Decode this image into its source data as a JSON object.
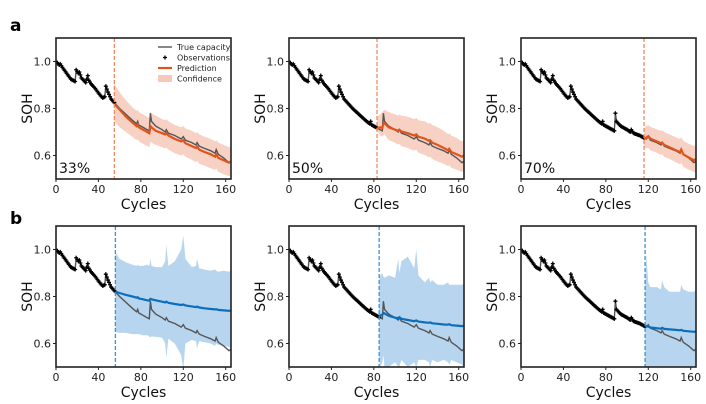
{
  "figure": {
    "row_labels": [
      "a",
      "b"
    ]
  },
  "legend": {
    "entries": [
      "True capacity",
      "Observations",
      "Prediction",
      "Confidence"
    ]
  },
  "colors": {
    "true_capacity": "#555555",
    "observations": "#000000",
    "row_a_prediction": "#e0541c",
    "row_a_confidence": "#f6c9b8",
    "row_a_split": "#f08a64",
    "row_b_prediction": "#0a6ebd",
    "row_b_confidence": "#b3d3ee",
    "row_b_split": "#3a93d6"
  },
  "chart_data": {
    "type": "line",
    "xlabel": "Cycles",
    "ylabel": "SOH",
    "xlim": [
      0,
      165
    ],
    "ylim": [
      0.5,
      1.1
    ],
    "xticks": [
      0,
      40,
      80,
      120,
      160
    ],
    "yticks": [
      0.6,
      0.8,
      1.0
    ],
    "ytick_labels": [
      "0.6",
      "0.8",
      "1.0"
    ],
    "true_capacity": {
      "cycles": [
        0,
        3,
        4,
        6,
        10,
        14,
        18,
        19,
        21,
        22,
        24,
        28,
        30,
        31,
        33,
        37,
        41,
        44,
        46,
        47,
        49,
        52,
        56,
        60,
        66,
        72,
        76,
        77,
        78,
        82,
        86,
        88,
        89,
        90,
        94,
        100,
        103,
        104,
        106,
        112,
        118,
        120,
        122,
        128,
        132,
        133,
        135,
        140,
        146,
        150,
        151,
        153,
        158,
        163,
        165
      ],
      "soh": [
        1.0,
        0.985,
        0.99,
        0.975,
        0.95,
        0.925,
        0.915,
        0.965,
        0.95,
        0.955,
        0.93,
        0.91,
        0.94,
        0.92,
        0.905,
        0.885,
        0.86,
        0.845,
        0.85,
        0.895,
        0.87,
        0.84,
        0.82,
        0.8,
        0.775,
        0.75,
        0.735,
        0.745,
        0.73,
        0.72,
        0.71,
        0.705,
        0.78,
        0.745,
        0.725,
        0.71,
        0.7,
        0.71,
        0.695,
        0.685,
        0.67,
        0.68,
        0.665,
        0.655,
        0.645,
        0.655,
        0.64,
        0.63,
        0.62,
        0.61,
        0.625,
        0.605,
        0.59,
        0.57,
        0.575
      ]
    },
    "panels": [
      {
        "row": "a",
        "label": "33%",
        "split_cycle": 55,
        "prediction": {
          "cycles": [
            55,
            60,
            66,
            72,
            76,
            77,
            78,
            82,
            86,
            88,
            89,
            90,
            94,
            100,
            103,
            104,
            106,
            112,
            118,
            120,
            122,
            128,
            132,
            133,
            135,
            140,
            146,
            150,
            151,
            153,
            158,
            163,
            165
          ],
          "soh": [
            0.82,
            0.795,
            0.765,
            0.74,
            0.725,
            0.732,
            0.72,
            0.71,
            0.7,
            0.695,
            0.725,
            0.72,
            0.705,
            0.695,
            0.69,
            0.695,
            0.685,
            0.67,
            0.66,
            0.665,
            0.652,
            0.64,
            0.632,
            0.638,
            0.625,
            0.615,
            0.605,
            0.595,
            0.605,
            0.59,
            0.58,
            0.57,
            0.575
          ]
        },
        "confidence_upper": [
          0.905,
          0.87,
          0.835,
          0.805,
          0.79,
          0.795,
          0.785,
          0.775,
          0.765,
          0.76,
          0.785,
          0.78,
          0.77,
          0.755,
          0.75,
          0.755,
          0.745,
          0.73,
          0.72,
          0.725,
          0.715,
          0.705,
          0.695,
          0.7,
          0.69,
          0.68,
          0.67,
          0.66,
          0.665,
          0.655,
          0.645,
          0.635,
          0.64
        ],
        "confidence_lower": [
          0.745,
          0.72,
          0.7,
          0.68,
          0.665,
          0.67,
          0.66,
          0.65,
          0.64,
          0.635,
          0.66,
          0.655,
          0.645,
          0.635,
          0.63,
          0.635,
          0.625,
          0.61,
          0.6,
          0.605,
          0.595,
          0.582,
          0.572,
          0.578,
          0.565,
          0.556,
          0.546,
          0.538,
          0.545,
          0.53,
          0.52,
          0.512,
          0.515
        ]
      },
      {
        "row": "a",
        "label": "50%",
        "split_cycle": 83,
        "prediction": {
          "cycles": [
            83,
            86,
            88,
            89,
            90,
            94,
            100,
            103,
            104,
            106,
            112,
            118,
            120,
            122,
            128,
            132,
            133,
            135,
            140,
            146,
            150,
            151,
            153,
            158,
            163,
            165
          ],
          "soh": [
            0.715,
            0.72,
            0.718,
            0.735,
            0.738,
            0.72,
            0.71,
            0.705,
            0.71,
            0.702,
            0.695,
            0.685,
            0.69,
            0.68,
            0.672,
            0.662,
            0.665,
            0.655,
            0.645,
            0.632,
            0.622,
            0.628,
            0.615,
            0.605,
            0.595,
            0.6
          ]
        },
        "confidence_upper": [
          0.765,
          0.775,
          0.785,
          0.79,
          0.795,
          0.785,
          0.775,
          0.77,
          0.775,
          0.77,
          0.765,
          0.755,
          0.76,
          0.75,
          0.745,
          0.735,
          0.74,
          0.73,
          0.72,
          0.705,
          0.69,
          0.695,
          0.685,
          0.675,
          0.66,
          0.665
        ],
        "confidence_lower": [
          0.705,
          0.685,
          0.68,
          0.685,
          0.69,
          0.665,
          0.655,
          0.645,
          0.65,
          0.64,
          0.632,
          0.62,
          0.625,
          0.612,
          0.602,
          0.592,
          0.595,
          0.585,
          0.575,
          0.565,
          0.555,
          0.56,
          0.548,
          0.54,
          0.53,
          0.535
        ]
      },
      {
        "row": "a",
        "label": "70%",
        "split_cycle": 116,
        "prediction": {
          "cycles": [
            116,
            118,
            120,
            122,
            128,
            132,
            133,
            135,
            140,
            146,
            150,
            151,
            153,
            158,
            163,
            165
          ],
          "soh": [
            0.672,
            0.675,
            0.682,
            0.672,
            0.66,
            0.652,
            0.655,
            0.645,
            0.635,
            0.622,
            0.615,
            0.625,
            0.605,
            0.592,
            0.58,
            0.585
          ]
        },
        "confidence_upper": [
          0.715,
          0.725,
          0.73,
          0.722,
          0.712,
          0.705,
          0.708,
          0.7,
          0.69,
          0.678,
          0.67,
          0.678,
          0.662,
          0.65,
          0.64,
          0.645
        ],
        "confidence_lower": [
          0.635,
          0.63,
          0.632,
          0.622,
          0.612,
          0.602,
          0.605,
          0.595,
          0.585,
          0.572,
          0.562,
          0.57,
          0.552,
          0.54,
          0.53,
          0.532
        ]
      },
      {
        "row": "b",
        "label": "",
        "split_cycle": 56,
        "prediction": {
          "cycles": [
            56,
            60,
            66,
            72,
            76,
            77,
            78,
            82,
            86,
            88,
            89,
            90,
            94,
            100,
            103,
            104,
            106,
            112,
            118,
            120,
            122,
            128,
            132,
            133,
            135,
            140,
            146,
            150,
            151,
            153,
            158,
            163,
            165
          ],
          "soh": [
            0.82,
            0.815,
            0.807,
            0.8,
            0.795,
            0.797,
            0.792,
            0.788,
            0.784,
            0.782,
            0.79,
            0.788,
            0.784,
            0.778,
            0.775,
            0.778,
            0.773,
            0.768,
            0.764,
            0.766,
            0.762,
            0.758,
            0.755,
            0.757,
            0.753,
            0.75,
            0.747,
            0.745,
            0.746,
            0.743,
            0.741,
            0.739,
            0.74
          ]
        },
        "confidence_upper": [
          0.99,
          0.96,
          0.945,
          0.935,
          0.93,
          0.935,
          0.93,
          0.93,
          0.935,
          0.93,
          0.96,
          0.93,
          0.925,
          0.925,
          0.95,
          1.02,
          0.93,
          0.95,
          1.0,
          1.06,
          0.96,
          0.925,
          0.93,
          0.96,
          0.92,
          0.915,
          0.91,
          0.915,
          0.91,
          0.905,
          0.91,
          0.905,
          0.91
        ],
        "confidence_lower": [
          0.65,
          0.645,
          0.645,
          0.64,
          0.64,
          0.64,
          0.64,
          0.635,
          0.635,
          0.63,
          0.625,
          0.63,
          0.628,
          0.625,
          0.6,
          0.54,
          0.62,
          0.6,
          0.55,
          0.49,
          0.6,
          0.615,
          0.61,
          0.58,
          0.61,
          0.605,
          0.6,
          0.59,
          0.6,
          0.595,
          0.59,
          0.585,
          0.58
        ]
      },
      {
        "row": "b",
        "label": "",
        "split_cycle": 85,
        "prediction": {
          "cycles": [
            85,
            86,
            88,
            89,
            90,
            94,
            100,
            103,
            104,
            106,
            112,
            118,
            120,
            122,
            128,
            132,
            133,
            135,
            140,
            146,
            150,
            151,
            153,
            158,
            163,
            165
          ],
          "soh": [
            0.715,
            0.72,
            0.722,
            0.73,
            0.728,
            0.718,
            0.71,
            0.708,
            0.712,
            0.705,
            0.7,
            0.695,
            0.698,
            0.693,
            0.69,
            0.688,
            0.69,
            0.686,
            0.684,
            0.681,
            0.68,
            0.682,
            0.678,
            0.676,
            0.674,
            0.675
          ]
        },
        "confidence_upper": [
          0.88,
          0.89,
          0.9,
          0.885,
          0.88,
          0.89,
          0.88,
          0.96,
          0.9,
          0.95,
          0.97,
          0.92,
          1.0,
          0.89,
          0.86,
          0.88,
          0.86,
          0.87,
          0.85,
          0.85,
          0.86,
          0.85,
          0.85,
          0.85,
          0.85,
          0.855
        ],
        "confidence_lower": [
          0.545,
          0.5,
          0.52,
          0.55,
          0.5,
          0.5,
          0.52,
          0.5,
          0.5,
          0.53,
          0.5,
          0.52,
          0.5,
          0.53,
          0.53,
          0.52,
          0.5,
          0.53,
          0.52,
          0.53,
          0.52,
          0.51,
          0.53,
          0.52,
          0.51,
          0.5
        ]
      },
      {
        "row": "b",
        "label": "",
        "split_cycle": 117,
        "prediction": {
          "cycles": [
            117,
            118,
            120,
            122,
            128,
            132,
            133,
            135,
            140,
            146,
            150,
            151,
            153,
            158,
            163,
            165
          ],
          "soh": [
            0.672,
            0.675,
            0.672,
            0.668,
            0.665,
            0.663,
            0.667,
            0.662,
            0.66,
            0.658,
            0.656,
            0.658,
            0.654,
            0.652,
            0.65,
            0.651
          ]
        },
        "confidence_upper": [
          0.84,
          0.98,
          0.86,
          0.84,
          0.84,
          0.83,
          0.87,
          0.84,
          0.82,
          0.82,
          0.82,
          0.85,
          0.83,
          0.82,
          0.82,
          0.83
        ],
        "confidence_lower": [
          0.5,
          0.5,
          0.5,
          0.5,
          0.5,
          0.5,
          0.5,
          0.5,
          0.5,
          0.5,
          0.5,
          0.5,
          0.5,
          0.5,
          0.5,
          0.5
        ]
      }
    ]
  }
}
